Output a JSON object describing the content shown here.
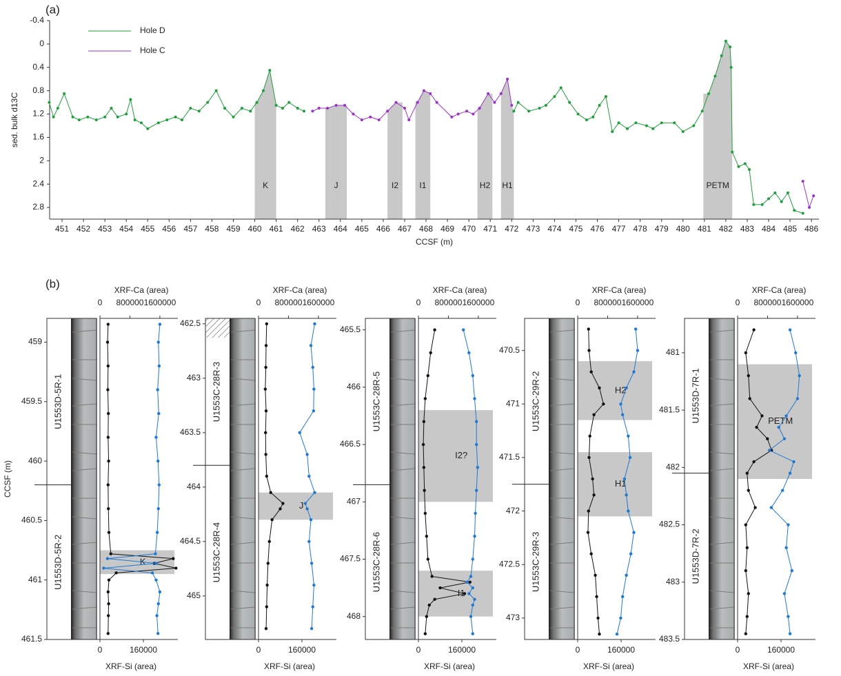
{
  "chart_data": [
    {
      "type": "line",
      "panel_label": "(a)",
      "xlabel": "CCSF (m)",
      "ylabel": "sed. bulk d13C",
      "xlim": [
        450.42,
        486.35
      ],
      "xticks": [
        451,
        452,
        453,
        454,
        455,
        456,
        457,
        458,
        459,
        460,
        461,
        462,
        463,
        464,
        465,
        466,
        467,
        468,
        469,
        470,
        471,
        472,
        473,
        474,
        475,
        476,
        477,
        478,
        479,
        480,
        481,
        482,
        483,
        484,
        485,
        486
      ],
      "ylim": [
        -0.4,
        3.0
      ],
      "yticks": [
        -0.4,
        0,
        0.4,
        0.8,
        1.2,
        1.6,
        2,
        2.4,
        2.8
      ],
      "y_inverted": true,
      "series": [
        {
          "name": "Hole D",
          "color": "#1f9e3c",
          "x": [
            450.4,
            450.6,
            450.8,
            451.1,
            451.5,
            451.8,
            452.2,
            452.6,
            453.0,
            453.3,
            453.6,
            454.0,
            454.2,
            454.4,
            454.7,
            455.0,
            455.5,
            455.9,
            456.3,
            456.6,
            457.0,
            457.4,
            457.8,
            458.2,
            458.6,
            459.0,
            459.4,
            459.8,
            460.1,
            460.4,
            460.7,
            461.0,
            461.3,
            461.6,
            462.0,
            462.3,
            470.0,
            472.1,
            472.3,
            472.8,
            473.3,
            473.6,
            474.0,
            474.3,
            474.7,
            475.1,
            475.5,
            475.8,
            476.1,
            476.4,
            476.7,
            477.0,
            477.4,
            477.8,
            478.3,
            478.6,
            479.0,
            479.6,
            480.0,
            480.5,
            480.9,
            481.2,
            481.5,
            481.8,
            482.0,
            482.2,
            482.25,
            482.3,
            482.6,
            482.9,
            483.1,
            483.3,
            483.7,
            484.0,
            484.3,
            484.6,
            484.9,
            485.2,
            485.6
          ],
          "values": [
            1.0,
            1.25,
            1.1,
            0.85,
            1.25,
            1.3,
            1.25,
            1.3,
            1.25,
            1.1,
            1.25,
            1.2,
            0.95,
            1.3,
            1.35,
            1.45,
            1.35,
            1.3,
            1.25,
            1.3,
            1.1,
            1.15,
            1.0,
            0.8,
            1.1,
            1.25,
            1.1,
            1.15,
            1.0,
            0.8,
            0.45,
            1.05,
            1.1,
            1.0,
            1.1,
            1.15,
            null,
            1.15,
            1.0,
            1.15,
            1.1,
            1.05,
            0.9,
            0.75,
            1.0,
            1.2,
            1.3,
            1.25,
            1.05,
            0.9,
            1.5,
            1.35,
            1.45,
            1.35,
            1.4,
            1.45,
            1.35,
            1.35,
            1.5,
            1.4,
            1.15,
            0.85,
            0.55,
            0.2,
            -0.05,
            0.05,
            0.4,
            1.85,
            2.1,
            2.05,
            2.15,
            2.75,
            2.75,
            2.65,
            2.55,
            2.7,
            2.55,
            2.85,
            2.9
          ]
        },
        {
          "name": "Hole C",
          "color": "#9b30c8",
          "x": [
            462.7,
            463.0,
            463.4,
            463.8,
            464.2,
            464.6,
            465.0,
            465.4,
            465.8,
            466.2,
            466.6,
            467.0,
            467.2,
            467.6,
            467.9,
            468.2,
            468.5,
            469.2,
            469.5,
            469.9,
            470.2,
            470.5,
            470.9,
            471.2,
            471.5,
            471.8,
            472.0,
            480.0,
            485.6,
            485.9,
            486.1
          ],
          "values": [
            1.15,
            1.1,
            1.1,
            1.05,
            1.05,
            1.2,
            1.3,
            1.25,
            1.3,
            1.15,
            1.0,
            1.1,
            1.3,
            1.0,
            0.8,
            0.85,
            1.0,
            1.25,
            1.2,
            1.15,
            1.2,
            1.1,
            0.85,
            1.0,
            0.85,
            0.6,
            1.05,
            null,
            2.35,
            2.8,
            2.6
          ]
        }
      ],
      "bands": [
        {
          "label": "K",
          "range": [
            460.0,
            461.0
          ]
        },
        {
          "label": "J",
          "range": [
            463.3,
            464.3
          ]
        },
        {
          "label": "I2",
          "range": [
            466.2,
            466.9
          ]
        },
        {
          "label": "I1",
          "range": [
            467.5,
            468.2
          ]
        },
        {
          "label": "H2",
          "range": [
            470.4,
            471.1
          ]
        },
        {
          "label": "H1",
          "range": [
            471.5,
            472.1
          ]
        },
        {
          "label": "PETM",
          "range": [
            480.95,
            482.3
          ]
        }
      ]
    },
    {
      "type": "depth-profile",
      "panel_label": "(b)",
      "ylabel": "CCSF (m)",
      "xlabel": "XRF-Si (area)",
      "x2label": "XRF-Ca (area)",
      "xlim": [
        0,
        287000
      ],
      "xticks": [
        0,
        160000
      ],
      "x2lim": [
        0,
        2080000
      ],
      "x2ticks": [
        0,
        800000,
        1600000
      ],
      "ylim": [
        458.8,
        461.5
      ],
      "yticks": [
        459,
        459.5,
        460,
        460.5,
        461,
        461.5
      ],
      "sections": [
        {
          "label": "U1553D-5R-1",
          "color": "#1f9e3c"
        },
        {
          "label": "U1553D-5R-2",
          "color": "#1f9e3c"
        }
      ],
      "boundary": 460.2,
      "bands": [
        {
          "label": "K",
          "range": [
            460.75,
            460.95
          ]
        }
      ],
      "depth": [
        458.85,
        459.0,
        459.2,
        459.4,
        459.6,
        459.8,
        460.0,
        460.2,
        460.4,
        460.6,
        460.78,
        460.82,
        460.86,
        460.9,
        460.94,
        461.0,
        461.1,
        461.2,
        461.3,
        461.45
      ],
      "series": [
        {
          "color": "#111111",
          "values": [
            30000,
            28000,
            30000,
            29000,
            31000,
            30000,
            32000,
            30000,
            31000,
            33000,
            40000,
            270000,
            200000,
            280000,
            60000,
            33000,
            30000,
            32000,
            31000,
            30000
          ]
        },
        {
          "color": "#1f78d1",
          "axis": "x2",
          "values": [
            1600000,
            1560000,
            1580000,
            1540000,
            1570000,
            1500000,
            1550000,
            1580000,
            1560000,
            1530000,
            1480000,
            200000,
            1500000,
            100000,
            1400000,
            1500000,
            1600000,
            1560000,
            1520000,
            1550000
          ]
        }
      ]
    },
    {
      "type": "depth-profile",
      "xlabel": "XRF-Si (area)",
      "x2label": "XRF-Ca (area)",
      "xlim": [
        0,
        287000
      ],
      "xticks": [
        0,
        160000
      ],
      "x2lim": [
        0,
        2080000
      ],
      "x2ticks": [
        0,
        800000,
        1600000
      ],
      "ylim": [
        462.45,
        465.4
      ],
      "yticks": [
        462.5,
        463,
        463.5,
        464,
        464.5,
        465
      ],
      "sections": [
        {
          "label": "U1553C-28R-3",
          "color": "#9b30c8"
        },
        {
          "label": "U1553C-28R-4",
          "color": "#9b30c8"
        }
      ],
      "boundary": 463.8,
      "bands": [
        {
          "label": "J",
          "range": [
            464.05,
            464.3
          ]
        }
      ],
      "depth": [
        462.5,
        462.7,
        462.9,
        463.1,
        463.3,
        463.5,
        463.7,
        463.9,
        464.05,
        464.15,
        464.2,
        464.3,
        464.5,
        464.7,
        464.9,
        465.1,
        465.3
      ],
      "series": [
        {
          "color": "#111111",
          "values": [
            30000,
            28000,
            27000,
            25000,
            28000,
            26000,
            27000,
            30000,
            45000,
            90000,
            80000,
            50000,
            40000,
            35000,
            32000,
            30000,
            28000
          ]
        },
        {
          "color": "#1f78d1",
          "axis": "x2",
          "values": [
            1500000,
            1400000,
            1450000,
            1480000,
            1470000,
            1100000,
            1300000,
            1350000,
            1500000,
            1250000,
            1300000,
            1400000,
            1350000,
            1420000,
            1480000,
            1450000,
            1420000
          ]
        }
      ]
    },
    {
      "type": "depth-profile",
      "xlabel": "XRF-Si (area)",
      "x2label": "XRF-Ca (area)",
      "xlim": [
        0,
        287000
      ],
      "xticks": [
        0,
        160000
      ],
      "x2lim": [
        0,
        2080000
      ],
      "x2ticks": [
        0,
        800000,
        1600000
      ],
      "ylim": [
        465.4,
        468.2
      ],
      "yticks": [
        465.5,
        466,
        466.5,
        467,
        467.5,
        468
      ],
      "sections": [
        {
          "label": "U1553C-28R-5",
          "color": "#9b30c8"
        },
        {
          "label": "U1553C-28R-6",
          "color": "#9b30c8"
        }
      ],
      "boundary": 466.85,
      "bands": [
        {
          "label": "I2?",
          "range": [
            466.2,
            467.0
          ]
        },
        {
          "label": "I1",
          "range": [
            467.6,
            468.0
          ]
        }
      ],
      "depth": [
        465.5,
        465.7,
        465.9,
        466.1,
        466.3,
        466.5,
        466.7,
        466.9,
        467.1,
        467.3,
        467.5,
        467.65,
        467.7,
        467.75,
        467.8,
        467.85,
        467.9,
        468.0,
        468.15
      ],
      "series": [
        {
          "color": "#111111",
          "values": [
            60000,
            45000,
            35000,
            25000,
            20000,
            18000,
            20000,
            22000,
            25000,
            30000,
            35000,
            50000,
            190000,
            80000,
            170000,
            60000,
            40000,
            30000,
            25000
          ]
        },
        {
          "color": "#1f78d1",
          "axis": "x2",
          "values": [
            1200000,
            1350000,
            1450000,
            1500000,
            1550000,
            1550000,
            1580000,
            1550000,
            1520000,
            1500000,
            1450000,
            1400000,
            1300000,
            1450000,
            1350000,
            1500000,
            1450000,
            1400000,
            1450000
          ]
        }
      ]
    },
    {
      "type": "depth-profile",
      "xlabel": "XRF-Si (area)",
      "x2label": "XRF-Ca (area)",
      "xlim": [
        0,
        287000
      ],
      "xticks": [
        0,
        160000
      ],
      "x2lim": [
        0,
        2080000
      ],
      "x2ticks": [
        0,
        800000,
        1600000
      ],
      "ylim": [
        470.2,
        473.2
      ],
      "yticks": [
        470.5,
        471,
        471.5,
        472,
        472.5,
        473
      ],
      "sections": [
        {
          "label": "U1553C-29R-2",
          "color": "#9b30c8"
        },
        {
          "label": "U1553C-29R-3",
          "color": "#9b30c8"
        }
      ],
      "boundary": 471.75,
      "bands": [
        {
          "label": "H2",
          "range": [
            470.6,
            471.15
          ]
        },
        {
          "label": "H1",
          "range": [
            471.45,
            472.05
          ]
        }
      ],
      "depth": [
        470.3,
        470.5,
        470.7,
        470.85,
        471.0,
        471.1,
        471.3,
        471.5,
        471.7,
        471.85,
        472.0,
        472.2,
        472.4,
        472.6,
        472.8,
        473.0,
        473.15
      ],
      "series": [
        {
          "color": "#111111",
          "values": [
            40000,
            42000,
            50000,
            80000,
            95000,
            60000,
            45000,
            42000,
            55000,
            60000,
            40000,
            38000,
            50000,
            65000,
            70000,
            75000,
            80000
          ]
        },
        {
          "color": "#1f78d1",
          "axis": "x2",
          "values": [
            1550000,
            1600000,
            1500000,
            1300000,
            1150000,
            1200000,
            1350000,
            1400000,
            1250000,
            1300000,
            1350000,
            1500000,
            1420000,
            1300000,
            1200000,
            1150000,
            1050000
          ]
        }
      ]
    },
    {
      "type": "depth-profile",
      "xlabel": "XRF-Si (area)",
      "x2label": "XRF-Ca (area)",
      "xlim": [
        0,
        287000
      ],
      "xticks": [
        0,
        160000
      ],
      "x2lim": [
        0,
        2080000
      ],
      "x2ticks": [
        0,
        800000,
        1600000
      ],
      "ylim": [
        480.7,
        483.5
      ],
      "yticks": [
        481,
        481.5,
        482,
        482.5,
        483,
        483.5
      ],
      "sections": [
        {
          "label": "U1553D-7R-1",
          "color": "#1f9e3c"
        },
        {
          "label": "U1553D-7R-2",
          "color": "#1f9e3c"
        }
      ],
      "boundary": 482.05,
      "bands": [
        {
          "label": "PETM",
          "range": [
            481.1,
            482.1
          ]
        }
      ],
      "depth": [
        480.8,
        481.0,
        481.2,
        481.4,
        481.55,
        481.65,
        481.75,
        481.85,
        481.95,
        482.05,
        482.2,
        482.35,
        482.5,
        482.7,
        482.9,
        483.1,
        483.3,
        483.45
      ],
      "series": [
        {
          "color": "#111111",
          "values": [
            60000,
            30000,
            40000,
            45000,
            90000,
            70000,
            110000,
            125000,
            60000,
            35000,
            40000,
            65000,
            30000,
            35000,
            30000,
            40000,
            35000,
            30000
          ]
        },
        {
          "color": "#1f78d1",
          "axis": "x2",
          "values": [
            1400000,
            1550000,
            1650000,
            1600000,
            1300000,
            1100000,
            1250000,
            850000,
            1500000,
            1400000,
            1200000,
            900000,
            1350000,
            1300000,
            1450000,
            1250000,
            1350000,
            1400000
          ]
        }
      ]
    }
  ]
}
